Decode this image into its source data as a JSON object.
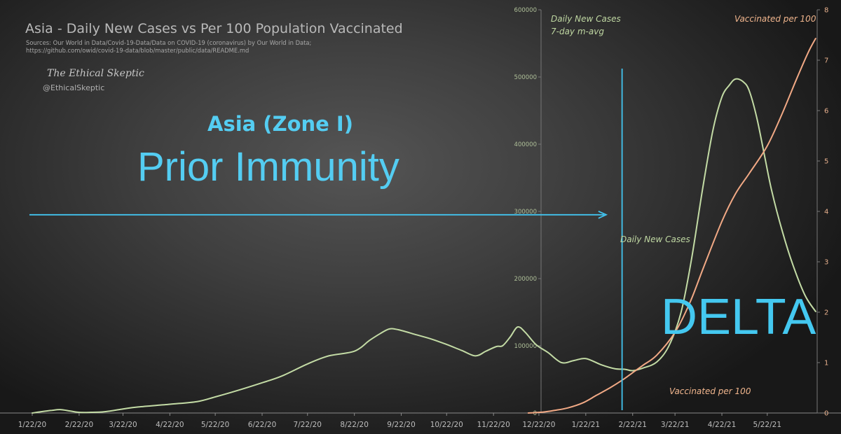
{
  "chart_data": {
    "type": "line",
    "title": "Asia - Daily New Cases vs Per 100 Population Vaccinated",
    "sources": [
      "Sources: Our World in Data/Covid-19-Data/Data on COVID-19 (coronavirus) by Our World in Data;",
      "https://github.com/owid/covid-19-data/blob/master/public/data/README.md"
    ],
    "brand": {
      "name": "The Ethical Skeptic",
      "handle": "@EthicalSkeptic"
    },
    "x_ticks": [
      "1/22/20",
      "2/22/20",
      "3/22/20",
      "4/22/20",
      "5/22/20",
      "6/22/20",
      "7/22/20",
      "8/22/20",
      "9/22/20",
      "10/22/20",
      "11/22/20",
      "12/22/20",
      "1/22/21",
      "2/22/21",
      "3/22/21",
      "4/22/21",
      "5/22/21"
    ],
    "x_range": [
      "2020-01-22",
      "2021-06-24"
    ],
    "y_left": {
      "ticks": [
        0,
        100000,
        200000,
        300000,
        400000,
        500000,
        600000
      ],
      "min": 0,
      "max": 600000
    },
    "y_right": {
      "ticks": [
        0,
        1,
        2,
        3,
        4,
        5,
        6,
        7,
        8
      ],
      "min": 0,
      "max": 8
    },
    "series": [
      {
        "name": "Daily New Cases",
        "axis": "left",
        "color": "#c3dba5",
        "points": [
          [
            "2020-01-22",
            0
          ],
          [
            "2020-01-28",
            2000
          ],
          [
            "2020-02-04",
            4000
          ],
          [
            "2020-02-10",
            5000
          ],
          [
            "2020-02-16",
            3000
          ],
          [
            "2020-02-22",
            1000
          ],
          [
            "2020-03-01",
            1000
          ],
          [
            "2020-03-10",
            2000
          ],
          [
            "2020-03-22",
            6000
          ],
          [
            "2020-04-01",
            9000
          ],
          [
            "2020-04-22",
            13000
          ],
          [
            "2020-05-10",
            17000
          ],
          [
            "2020-05-22",
            24000
          ],
          [
            "2020-06-05",
            33000
          ],
          [
            "2020-06-22",
            45000
          ],
          [
            "2020-07-05",
            55000
          ],
          [
            "2020-07-22",
            73000
          ],
          [
            "2020-08-05",
            85000
          ],
          [
            "2020-08-22",
            92000
          ],
          [
            "2020-09-01",
            108000
          ],
          [
            "2020-09-08",
            118000
          ],
          [
            "2020-09-14",
            125000
          ],
          [
            "2020-09-20",
            124000
          ],
          [
            "2020-10-01",
            117000
          ],
          [
            "2020-10-12",
            110000
          ],
          [
            "2020-10-22",
            102000
          ],
          [
            "2020-11-01",
            93000
          ],
          [
            "2020-11-10",
            85000
          ],
          [
            "2020-11-17",
            92000
          ],
          [
            "2020-11-24",
            99000
          ],
          [
            "2020-11-28",
            100000
          ],
          [
            "2020-12-03",
            113000
          ],
          [
            "2020-12-08",
            128000
          ],
          [
            "2020-12-13",
            120000
          ],
          [
            "2020-12-20",
            102000
          ],
          [
            "2020-12-28",
            90000
          ],
          [
            "2021-01-06",
            75000
          ],
          [
            "2021-01-14",
            78000
          ],
          [
            "2021-01-22",
            81000
          ],
          [
            "2021-02-01",
            72000
          ],
          [
            "2021-02-10",
            66000
          ],
          [
            "2021-02-17",
            65000
          ],
          [
            "2021-02-22",
            63000
          ],
          [
            "2021-03-01",
            67000
          ],
          [
            "2021-03-10",
            76000
          ],
          [
            "2021-03-18",
            100000
          ],
          [
            "2021-03-26",
            150000
          ],
          [
            "2021-04-02",
            230000
          ],
          [
            "2021-04-09",
            330000
          ],
          [
            "2021-04-16",
            420000
          ],
          [
            "2021-04-22",
            470000
          ],
          [
            "2021-04-27",
            488000
          ],
          [
            "2021-05-01",
            497000
          ],
          [
            "2021-05-06",
            493000
          ],
          [
            "2021-05-10",
            480000
          ],
          [
            "2021-05-15",
            440000
          ],
          [
            "2021-05-20",
            385000
          ],
          [
            "2021-05-25",
            330000
          ],
          [
            "2021-06-01",
            270000
          ],
          [
            "2021-06-08",
            220000
          ],
          [
            "2021-06-16",
            175000
          ],
          [
            "2021-06-23",
            151000
          ]
        ]
      },
      {
        "name": "Vaccinated per 100",
        "axis": "right",
        "color": "#f1a985",
        "points": [
          [
            "2020-12-15",
            0
          ],
          [
            "2020-12-25",
            0.02
          ],
          [
            "2021-01-01",
            0.05
          ],
          [
            "2021-01-10",
            0.1
          ],
          [
            "2021-01-20",
            0.2
          ],
          [
            "2021-01-29",
            0.35
          ],
          [
            "2021-02-07",
            0.5
          ],
          [
            "2021-02-15",
            0.65
          ],
          [
            "2021-02-22",
            0.8
          ],
          [
            "2021-03-01",
            0.95
          ],
          [
            "2021-03-10",
            1.15
          ],
          [
            "2021-03-22",
            1.6
          ],
          [
            "2021-04-01",
            2.2
          ],
          [
            "2021-04-10",
            2.9
          ],
          [
            "2021-04-22",
            3.8
          ],
          [
            "2021-05-01",
            4.35
          ],
          [
            "2021-05-10",
            4.75
          ],
          [
            "2021-05-22",
            5.3
          ],
          [
            "2021-06-01",
            5.95
          ],
          [
            "2021-06-10",
            6.6
          ],
          [
            "2021-06-18",
            7.15
          ],
          [
            "2021-06-23",
            7.43
          ]
        ]
      }
    ],
    "reference_line": {
      "date": "2021-02-15",
      "color": "#42c4ef"
    },
    "arrow": {
      "y": 295000,
      "from": "2020-01-22",
      "to": "2021-02-04",
      "color": "#42c4ef"
    },
    "annotations": {
      "zone": "Asia (Zone I)",
      "immunity": "Prior Immunity",
      "delta": "DELTA",
      "cases_axis_label_1": "Daily New Cases",
      "cases_axis_label_2": "7-day m-avg",
      "vacc_axis_label": "Vaccinated per 100",
      "cases_mid_label": "Daily New Cases",
      "vacc_bottom_label": "Vaccinated per 100"
    },
    "grid": false,
    "legend": "none"
  }
}
